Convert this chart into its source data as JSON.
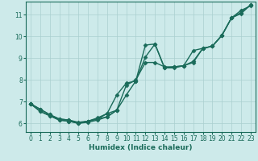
{
  "title": "",
  "xlabel": "Humidex (Indice chaleur)",
  "bg_color": "#cdeaea",
  "grid_color": "#aacfcf",
  "line_color": "#1a6b5a",
  "xlim": [
    -0.5,
    23.5
  ],
  "ylim": [
    5.6,
    11.6
  ],
  "xticks": [
    0,
    1,
    2,
    3,
    4,
    5,
    6,
    7,
    8,
    9,
    10,
    11,
    12,
    13,
    14,
    15,
    16,
    17,
    18,
    19,
    20,
    21,
    22,
    23
  ],
  "yticks": [
    6,
    7,
    8,
    9,
    10,
    11
  ],
  "series": [
    {
      "x": [
        0,
        1,
        2,
        3,
        4,
        5,
        6,
        7,
        8,
        9,
        10,
        11,
        12,
        13,
        14,
        15,
        16,
        17,
        18,
        19,
        20,
        21,
        22,
        23
      ],
      "y": [
        6.9,
        6.65,
        6.4,
        6.2,
        6.15,
        6.05,
        6.1,
        6.2,
        6.45,
        6.6,
        7.75,
        8.0,
        8.8,
        8.8,
        8.6,
        8.6,
        8.65,
        9.35,
        9.45,
        9.55,
        10.05,
        10.85,
        11.05,
        11.45
      ],
      "marker": "D",
      "markersize": 2.5,
      "linewidth": 1.0
    },
    {
      "x": [
        0,
        1,
        2,
        3,
        4,
        5,
        6,
        7,
        8,
        9,
        10,
        11,
        12,
        13,
        14,
        15,
        16,
        17,
        18,
        19,
        20,
        21,
        22,
        23
      ],
      "y": [
        6.9,
        6.65,
        6.4,
        6.2,
        6.15,
        6.0,
        6.1,
        6.25,
        6.45,
        7.3,
        7.85,
        7.95,
        9.6,
        9.65,
        8.55,
        8.6,
        8.65,
        8.8,
        9.45,
        9.55,
        10.05,
        10.85,
        11.2,
        11.4
      ],
      "marker": "D",
      "markersize": 2.5,
      "linewidth": 1.0
    },
    {
      "x": [
        0,
        1,
        2,
        3,
        4,
        5,
        6,
        7,
        8,
        9,
        10,
        11,
        12,
        13,
        14,
        15,
        16,
        17,
        18,
        19,
        20,
        21,
        22,
        23
      ],
      "y": [
        6.9,
        6.55,
        6.35,
        6.15,
        6.1,
        6.0,
        6.05,
        6.15,
        6.3,
        6.6,
        7.3,
        7.95,
        9.05,
        9.65,
        8.55,
        8.55,
        8.65,
        8.85,
        9.45,
        9.55,
        10.05,
        10.85,
        11.1,
        11.45
      ],
      "marker": "D",
      "markersize": 2.5,
      "linewidth": 1.0
    },
    {
      "x": [
        0,
        1,
        2,
        3,
        4,
        5,
        6,
        7,
        8,
        9
      ],
      "y": [
        6.9,
        6.55,
        6.35,
        6.15,
        6.1,
        6.0,
        6.1,
        6.2,
        6.3,
        6.6
      ],
      "marker": "D",
      "markersize": 2.5,
      "linewidth": 1.0
    }
  ]
}
